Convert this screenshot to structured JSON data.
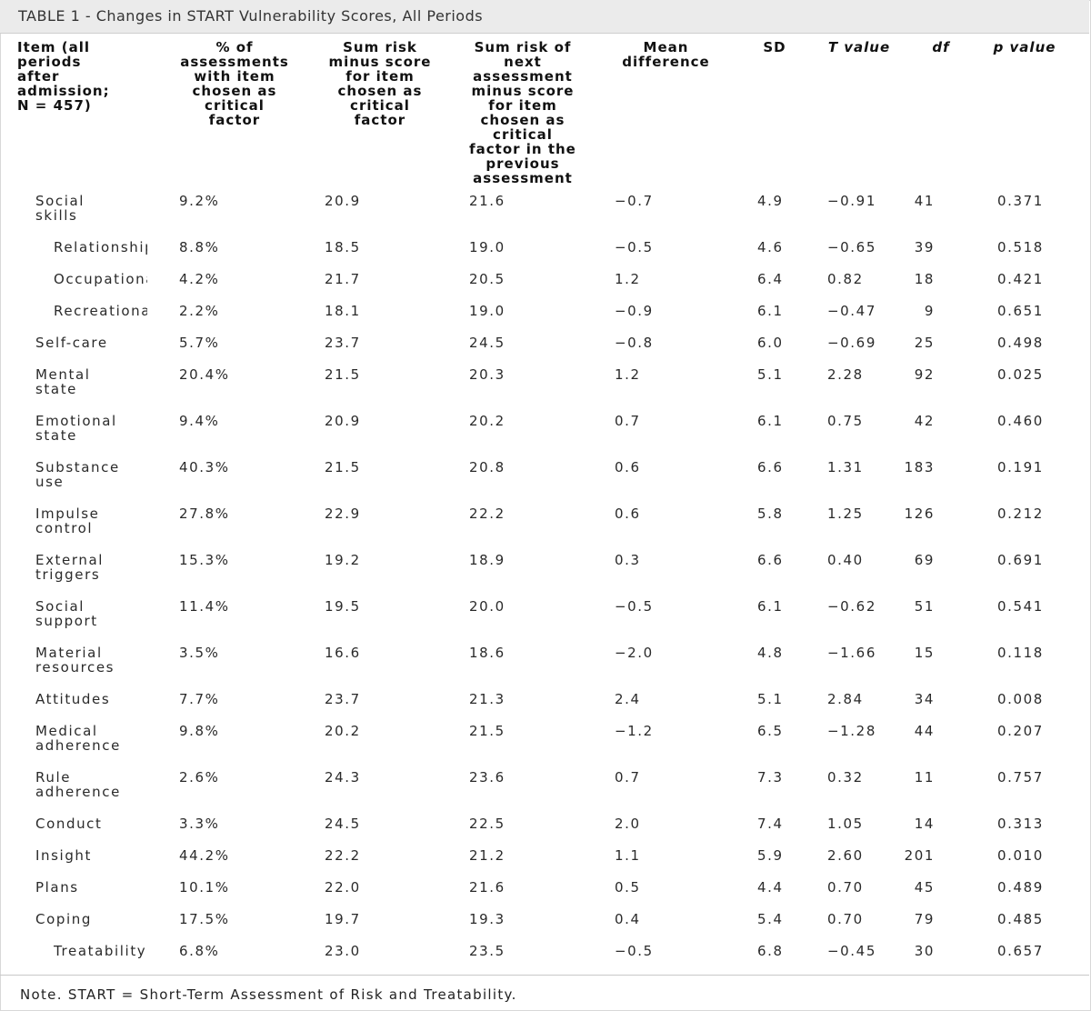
{
  "caption": "TABLE 1 - Changes in START Vulnerability Scores, All Periods",
  "headers": {
    "item": "Item (all\nperiods\nafter\nadmission;\nN = 457)",
    "pct": "% of\nassessments\nwith item\nchosen as\ncritical\nfactor",
    "sum_minus": "Sum risk\nminus score\nfor item\nchosen as\ncritical\nfactor",
    "sum_next": "Sum risk of\nnext\nassessment\nminus score\nfor item\nchosen as\ncritical\nfactor in the\nprevious\nassessment",
    "mean_diff": "Mean\ndifference",
    "sd": "SD",
    "t": "T value",
    "df": "df",
    "p": "p value"
  },
  "rows": [
    {
      "item": "Social\nskills",
      "indent": false,
      "pct": "9.2%",
      "sum_minus": "20.9",
      "sum_next": "21.6",
      "mean_diff": "−0.7",
      "sd": "4.9",
      "t": "−0.91",
      "df": "41",
      "p": "0.371"
    },
    {
      "item": "Relationships",
      "indent": true,
      "pct": "8.8%",
      "sum_minus": "18.5",
      "sum_next": "19.0",
      "mean_diff": "−0.5",
      "sd": "4.6",
      "t": "−0.65",
      "df": "39",
      "p": "0.518"
    },
    {
      "item": "Occupational",
      "indent": true,
      "pct": "4.2%",
      "sum_minus": "21.7",
      "sum_next": "20.5",
      "mean_diff": "1.2",
      "sd": "6.4",
      "t": "0.82",
      "df": "18",
      "p": "0.421"
    },
    {
      "item": "Recreational",
      "indent": true,
      "pct": "2.2%",
      "sum_minus": "18.1",
      "sum_next": "19.0",
      "mean_diff": "−0.9",
      "sd": "6.1",
      "t": "−0.47",
      "df": "9",
      "p": "0.651"
    },
    {
      "item": "Self-care",
      "indent": false,
      "pct": "5.7%",
      "sum_minus": "23.7",
      "sum_next": "24.5",
      "mean_diff": "−0.8",
      "sd": "6.0",
      "t": "−0.69",
      "df": "25",
      "p": "0.498"
    },
    {
      "item": "Mental\nstate",
      "indent": false,
      "pct": "20.4%",
      "sum_minus": "21.5",
      "sum_next": "20.3",
      "mean_diff": "1.2",
      "sd": "5.1",
      "t": "2.28",
      "df": "92",
      "p": "0.025"
    },
    {
      "item": "Emotional\nstate",
      "indent": false,
      "pct": "9.4%",
      "sum_minus": "20.9",
      "sum_next": "20.2",
      "mean_diff": "0.7",
      "sd": "6.1",
      "t": "0.75",
      "df": "42",
      "p": "0.460"
    },
    {
      "item": "   Substance\nuse",
      "indent": false,
      "pct": "40.3%",
      "sum_minus": "21.5",
      "sum_next": "20.8",
      "mean_diff": "0.6",
      "sd": "6.6",
      "t": "1.31",
      "df": "183",
      "p": "0.191"
    },
    {
      "item": "Impulse\ncontrol",
      "indent": false,
      "pct": "27.8%",
      "sum_minus": "22.9",
      "sum_next": "22.2",
      "mean_diff": "0.6",
      "sd": "5.8",
      "t": "1.25",
      "df": "126",
      "p": "0.212"
    },
    {
      "item": "External\ntriggers",
      "indent": false,
      "pct": "15.3%",
      "sum_minus": "19.2",
      "sum_next": "18.9",
      "mean_diff": "0.3",
      "sd": "6.6",
      "t": "0.40",
      "df": "69",
      "p": "0.691"
    },
    {
      "item": "Social\nsupport",
      "indent": false,
      "pct": "11.4%",
      "sum_minus": "19.5",
      "sum_next": "20.0",
      "mean_diff": "−0.5",
      "sd": "6.1",
      "t": "−0.62",
      "df": "51",
      "p": "0.541"
    },
    {
      "item": "Material\nresources",
      "indent": false,
      "pct": "3.5%",
      "sum_minus": "16.6",
      "sum_next": "18.6",
      "mean_diff": "−2.0",
      "sd": "4.8",
      "t": "−1.66",
      "df": "15",
      "p": "0.118"
    },
    {
      "item": "Attitudes",
      "indent": false,
      "pct": "7.7%",
      "sum_minus": "23.7",
      "sum_next": "21.3",
      "mean_diff": "2.4",
      "sd": "5.1",
      "t": "2.84",
      "df": "34",
      "p": "0.008"
    },
    {
      "item": "Medical\nadherence",
      "indent": false,
      "pct": "9.8%",
      "sum_minus": "20.2",
      "sum_next": "21.5",
      "mean_diff": "−1.2",
      "sd": "6.5",
      "t": "−1.28",
      "df": "44",
      "p": "0.207"
    },
    {
      "item": "Rule\nadherence",
      "indent": false,
      "pct": "2.6%",
      "sum_minus": "24.3",
      "sum_next": "23.6",
      "mean_diff": "0.7",
      "sd": "7.3",
      "t": "0.32",
      "df": "11",
      "p": "0.757"
    },
    {
      "item": "Conduct",
      "indent": false,
      "pct": "3.3%",
      "sum_minus": "24.5",
      "sum_next": "22.5",
      "mean_diff": "2.0",
      "sd": "7.4",
      "t": "1.05",
      "df": "14",
      "p": "0.313"
    },
    {
      "item": "Insight",
      "indent": false,
      "pct": "44.2%",
      "sum_minus": "22.2",
      "sum_next": "21.2",
      "mean_diff": "1.1",
      "sd": "5.9",
      "t": "2.60",
      "df": "201",
      "p": "0.010"
    },
    {
      "item": "Plans",
      "indent": false,
      "pct": "10.1%",
      "sum_minus": "22.0",
      "sum_next": "21.6",
      "mean_diff": "0.5",
      "sd": "4.4",
      "t": "0.70",
      "df": "45",
      "p": "0.489"
    },
    {
      "item": "Coping",
      "indent": false,
      "pct": "17.5%",
      "sum_minus": "19.7",
      "sum_next": "19.3",
      "mean_diff": "0.4",
      "sd": "5.4",
      "t": "0.70",
      "df": "79",
      "p": "0.485"
    },
    {
      "item": "Treatability",
      "indent": true,
      "pct": "6.8%",
      "sum_minus": "23.0",
      "sum_next": "23.5",
      "mean_diff": "−0.5",
      "sd": "6.8",
      "t": "−0.45",
      "df": "30",
      "p": "0.657"
    }
  ],
  "note": "Note. START = Short-Term Assessment of Risk and Treatability."
}
